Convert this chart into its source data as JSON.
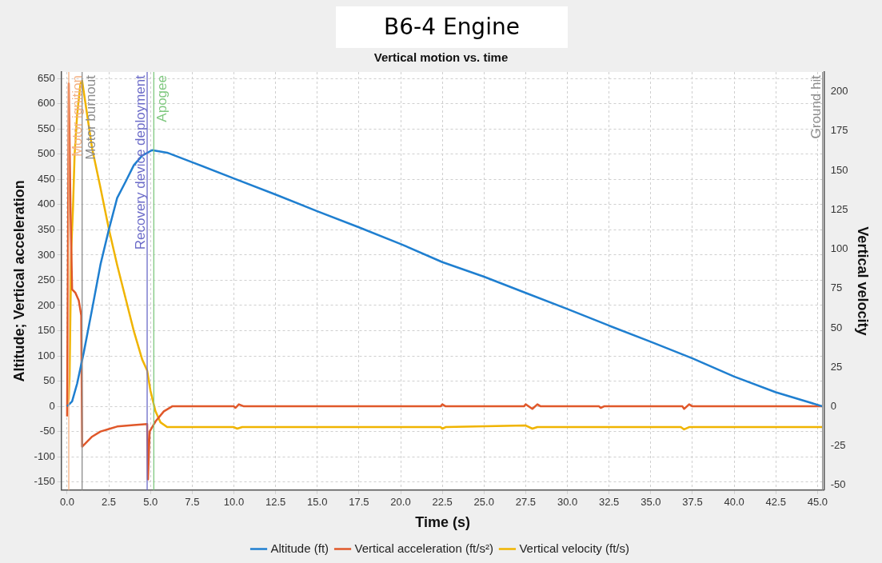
{
  "chart_data": {
    "type": "line",
    "title": "B6-4 Engine",
    "subtitle": "Vertical motion vs. time",
    "xlabel": "Time (s)",
    "ylabel": "Altitude; Vertical acceleration",
    "y2label": "Vertical velocity",
    "xlim": [
      -0.35,
      45.4
    ],
    "xticks": [
      {
        "value": 0,
        "label": "0.0"
      },
      {
        "value": 2.5,
        "label": "2.5"
      },
      {
        "value": 5,
        "label": "5.0"
      },
      {
        "value": 7.5,
        "label": "7.5"
      },
      {
        "value": 10,
        "label": "10.0"
      },
      {
        "value": 12.5,
        "label": "12.5"
      },
      {
        "value": 15,
        "label": "15.0"
      },
      {
        "value": 17.5,
        "label": "17.5"
      },
      {
        "value": 20,
        "label": "20.0"
      },
      {
        "value": 22.5,
        "label": "22.5"
      },
      {
        "value": 25,
        "label": "25.0"
      },
      {
        "value": 27.5,
        "label": "27.5"
      },
      {
        "value": 30,
        "label": "30.0"
      },
      {
        "value": 32.5,
        "label": "32.5"
      },
      {
        "value": 35,
        "label": "35.0"
      },
      {
        "value": 37.5,
        "label": "37.5"
      },
      {
        "value": 40,
        "label": "40.0"
      },
      {
        "value": 42.5,
        "label": "42.5"
      },
      {
        "value": 45,
        "label": "45.0"
      }
    ],
    "ylim": [
      -166,
      663
    ],
    "yticks": [
      -150,
      -100,
      -50,
      0,
      50,
      100,
      150,
      200,
      250,
      300,
      350,
      400,
      450,
      500,
      550,
      600,
      650
    ],
    "y2lim": [
      -53,
      212.5
    ],
    "y2ticks": [
      -50,
      -25,
      0,
      25,
      50,
      75,
      100,
      125,
      150,
      175,
      200
    ],
    "grid": true,
    "legend": "bottom",
    "marker": "none",
    "line_style": "solid",
    "series": [
      {
        "name": "Altitude (ft)",
        "color": "#1f7fd0",
        "x": [
          0,
          0.3,
          0.6,
          1,
          1.5,
          2,
          2.5,
          3,
          3.5,
          4,
          4.5,
          5.1,
          6,
          7.5,
          10,
          12.5,
          15,
          17.5,
          20,
          22.5,
          25,
          27.5,
          30,
          32.5,
          35,
          37.5,
          40,
          42.5,
          45.3
        ],
        "values": [
          0,
          10,
          45,
          107,
          193,
          281,
          350,
          413,
          445,
          478,
          497,
          508,
          503,
          484,
          452,
          420,
          387,
          355,
          322,
          286,
          257,
          225,
          193,
          160,
          128,
          95,
          59,
          28,
          0
        ]
      },
      {
        "name": "Vertical acceleration (ft/s²)",
        "color": "#e0582a",
        "x": [
          0,
          0.05,
          0.1,
          0.2,
          0.3,
          0.5,
          0.7,
          0.85,
          0.9,
          1.5,
          2,
          2.5,
          3,
          4,
          4.8,
          4.85,
          4.95,
          5.3,
          5.8,
          6.3,
          10,
          10.1,
          10.3,
          10.6,
          22.4,
          22.5,
          22.7,
          27.4,
          27.5,
          27.9,
          28.2,
          28.4,
          31.9,
          32,
          32.2,
          36.9,
          37,
          37.3,
          37.5,
          45.3
        ],
        "values": [
          -20,
          300,
          640,
          400,
          232,
          225,
          210,
          180,
          -80,
          -60,
          -50,
          -45,
          -40,
          -37,
          -35,
          -145,
          -50,
          -30,
          -10,
          0,
          0,
          -3,
          4,
          0,
          0,
          4,
          0,
          0,
          4,
          -5,
          4,
          0,
          0,
          -3,
          0,
          0,
          -5,
          4,
          0,
          0
        ]
      },
      {
        "name": "Vertical velocity (ft/s)",
        "color": "#f0b400",
        "axis": "y2",
        "x": [
          0,
          0.1,
          0.15,
          0.25,
          0.35,
          0.45,
          0.6,
          0.8,
          0.9,
          1.5,
          2,
          2.5,
          3,
          3.5,
          4,
          4.5,
          4.8,
          5,
          5.3,
          5.6,
          6,
          10,
          10.2,
          10.5,
          22.4,
          22.5,
          22.7,
          27.5,
          27.9,
          28.2,
          36.8,
          37,
          37.3,
          45.3
        ],
        "values": [
          0,
          5,
          20,
          100,
          125,
          160,
          185,
          205,
          207,
          164,
          139,
          113,
          90,
          69,
          48,
          30,
          23,
          10,
          -3,
          -10,
          -13,
          -13,
          -14,
          -13,
          -13,
          -14,
          -13,
          -12,
          -14,
          -13,
          -13,
          -14.5,
          -13,
          -13
        ]
      }
    ],
    "ref_lines": [
      {
        "axis": "x",
        "value": 0.1,
        "label": "Motor ignition",
        "color": "#f4b183"
      },
      {
        "axis": "x",
        "value": 0.9,
        "label": "Motor burnout",
        "color": "#8c8c8c"
      },
      {
        "axis": "x",
        "value": 4.8,
        "label": "Recovery device deployment",
        "color": "#6a6ac8"
      },
      {
        "axis": "x",
        "value": 5.2,
        "label": "Apogee",
        "color": "#7fc87f"
      },
      {
        "axis": "x",
        "value": 45.3,
        "label": "Ground hit",
        "color": "#8c8c8c"
      }
    ]
  }
}
